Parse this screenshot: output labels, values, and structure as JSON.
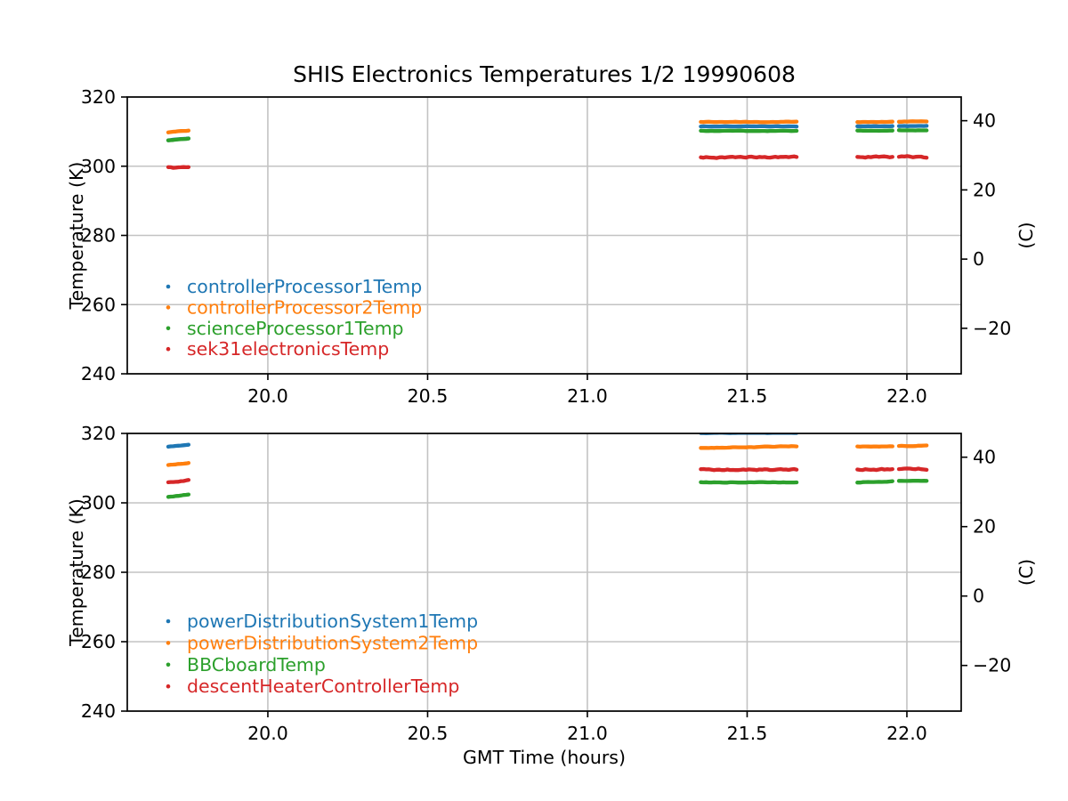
{
  "title": "SHIS Electronics Temperatures 1/2 19990608",
  "xlabel": "GMT Time (hours)",
  "ylabel_left": "Temperature (K)",
  "ylabel_right": "(C)",
  "colors": {
    "blue": "#1f77b4",
    "orange": "#ff7f0e",
    "green": "#2ca02c",
    "red": "#d62728",
    "grid": "#c3c3c3",
    "spine": "#000000"
  },
  "chart_data": [
    {
      "type": "scatter",
      "subplot": "top",
      "title": "SHIS Electronics Temperatures 1/2 19990608",
      "xlabel": "",
      "ylabel_left": "Temperature (K)",
      "ylabel_right": "(C)",
      "xlim": [
        19.56,
        22.17
      ],
      "ylim_K": [
        240,
        320
      ],
      "x_ticks": [
        20.0,
        20.5,
        21.0,
        21.5,
        22.0
      ],
      "x_tick_labels": [
        "20.0",
        "20.5",
        "21.0",
        "21.5",
        "22.0"
      ],
      "y_ticks_K": [
        320,
        300,
        280,
        260,
        240
      ],
      "y_tick_labels_K": [
        "320",
        "300",
        "280",
        "260",
        "240"
      ],
      "y_ticks_C": [
        40,
        20,
        0,
        -20
      ],
      "y_tick_labels_C": [
        "40",
        "20",
        "0",
        "−20"
      ],
      "grid": true,
      "legend_position": "lower left",
      "legend_entries": [
        "controllerProcessor1Temp",
        "controllerProcessor2Temp",
        "scienceProcessor1Temp",
        "sek31electronicsTemp"
      ],
      "series": [
        {
          "name": "controllerProcessor1Temp",
          "color": "#1f77b4",
          "segments": [
            {
              "t": [
                19.688,
                19.752
              ],
              "tempK": [
                307.55,
                308.05
              ],
              "wiggle": 0.05
            },
            {
              "t": [
                21.355,
                21.655
              ],
              "tempK": [
                311.5,
                311.5
              ],
              "wiggle": 0.06
            },
            {
              "t": [
                21.845,
                21.955
              ],
              "tempK": [
                311.5,
                311.55
              ],
              "wiggle": 0.06
            },
            {
              "t": [
                21.975,
                22.062
              ],
              "tempK": [
                311.6,
                311.6
              ],
              "wiggle": 0.06
            }
          ]
        },
        {
          "name": "controllerProcessor2Temp",
          "color": "#ff7f0e",
          "segments": [
            {
              "t": [
                19.688,
                19.752
              ],
              "tempK": [
                309.8,
                310.3
              ],
              "wiggle": 0.07
            },
            {
              "t": [
                21.355,
                21.655
              ],
              "tempK": [
                312.8,
                312.8
              ],
              "wiggle": 0.07
            },
            {
              "t": [
                21.845,
                21.955
              ],
              "tempK": [
                312.8,
                312.85
              ],
              "wiggle": 0.07
            },
            {
              "t": [
                21.975,
                22.062
              ],
              "tempK": [
                312.9,
                312.95
              ],
              "wiggle": 0.07
            }
          ]
        },
        {
          "name": "scienceProcessor1Temp",
          "color": "#2ca02c",
          "segments": [
            {
              "t": [
                19.688,
                19.752
              ],
              "tempK": [
                307.5,
                308.0
              ],
              "wiggle": 0.07
            },
            {
              "t": [
                21.355,
                21.655
              ],
              "tempK": [
                310.2,
                310.2
              ],
              "wiggle": 0.07
            },
            {
              "t": [
                21.845,
                21.955
              ],
              "tempK": [
                310.25,
                310.3
              ],
              "wiggle": 0.07
            },
            {
              "t": [
                21.975,
                22.062
              ],
              "tempK": [
                310.4,
                310.4
              ],
              "wiggle": 0.07
            }
          ]
        },
        {
          "name": "sek31electronicsTemp",
          "color": "#d62728",
          "segments": [
            {
              "t": [
                19.688,
                19.752
              ],
              "tempK": [
                299.7,
                299.5
              ],
              "wiggle": 0.18
            },
            {
              "t": [
                21.355,
                21.655
              ],
              "tempK": [
                302.5,
                302.7
              ],
              "wiggle": 0.22
            },
            {
              "t": [
                21.845,
                21.955
              ],
              "tempK": [
                302.8,
                302.7
              ],
              "wiggle": 0.25
            },
            {
              "t": [
                21.975,
                22.062
              ],
              "tempK": [
                302.7,
                302.7
              ],
              "wiggle": 0.25
            }
          ]
        }
      ]
    },
    {
      "type": "scatter",
      "subplot": "bottom",
      "title": "",
      "xlabel": "GMT Time (hours)",
      "ylabel_left": "Temperature (K)",
      "ylabel_right": "(C)",
      "xlim": [
        19.56,
        22.17
      ],
      "ylim_K": [
        240,
        320
      ],
      "x_ticks": [
        20.0,
        20.5,
        21.0,
        21.5,
        22.0
      ],
      "x_tick_labels": [
        "20.0",
        "20.5",
        "21.0",
        "21.5",
        "22.0"
      ],
      "y_ticks_K": [
        320,
        300,
        280,
        260,
        240
      ],
      "y_tick_labels_K": [
        "320",
        "300",
        "280",
        "260",
        "240"
      ],
      "y_ticks_C": [
        40,
        20,
        0,
        -20
      ],
      "y_tick_labels_C": [
        "40",
        "20",
        "0",
        "−20"
      ],
      "grid": true,
      "legend_position": "lower left",
      "legend_entries": [
        "powerDistributionSystem1Temp",
        "powerDistributionSystem2Temp",
        "BBCboardTemp",
        "descentHeaterControllerTemp"
      ],
      "series": [
        {
          "name": "powerDistributionSystem1Temp",
          "color": "#1f77b4",
          "segments": [
            {
              "t": [
                19.688,
                19.752
              ],
              "tempK": [
                316.2,
                316.8
              ],
              "wiggle": 0.07
            },
            {
              "t": [
                21.355,
                21.655
              ],
              "tempK": [
                320.15,
                320.15
              ],
              "wiggle": 0.06
            },
            {
              "t": [
                21.845,
                21.955
              ],
              "tempK": [
                320.6,
                320.6
              ],
              "wiggle": 0.05
            },
            {
              "t": [
                21.975,
                22.062
              ],
              "tempK": [
                320.6,
                320.6
              ],
              "wiggle": 0.05
            }
          ]
        },
        {
          "name": "powerDistributionSystem2Temp",
          "color": "#ff7f0e",
          "segments": [
            {
              "t": [
                19.688,
                19.752
              ],
              "tempK": [
                310.9,
                311.5
              ],
              "wiggle": 0.07
            },
            {
              "t": [
                21.355,
                21.655
              ],
              "tempK": [
                315.8,
                316.3
              ],
              "wiggle": 0.08
            },
            {
              "t": [
                21.845,
                21.955
              ],
              "tempK": [
                316.2,
                316.25
              ],
              "wiggle": 0.07
            },
            {
              "t": [
                21.975,
                22.062
              ],
              "tempK": [
                316.4,
                316.45
              ],
              "wiggle": 0.07
            }
          ]
        },
        {
          "name": "BBCboardTemp",
          "color": "#2ca02c",
          "segments": [
            {
              "t": [
                19.688,
                19.752
              ],
              "tempK": [
                301.7,
                302.4
              ],
              "wiggle": 0.07
            },
            {
              "t": [
                21.355,
                21.655
              ],
              "tempK": [
                305.9,
                305.95
              ],
              "wiggle": 0.07
            },
            {
              "t": [
                21.845,
                21.955
              ],
              "tempK": [
                305.9,
                306.2
              ],
              "wiggle": 0.08
            },
            {
              "t": [
                21.975,
                22.062
              ],
              "tempK": [
                306.3,
                306.3
              ],
              "wiggle": 0.07
            }
          ]
        },
        {
          "name": "descentHeaterControllerTemp",
          "color": "#d62728",
          "segments": [
            {
              "t": [
                19.688,
                19.752
              ],
              "tempK": [
                305.9,
                306.5
              ],
              "wiggle": 0.1
            },
            {
              "t": [
                21.355,
                21.655
              ],
              "tempK": [
                309.55,
                309.6
              ],
              "wiggle": 0.18
            },
            {
              "t": [
                21.845,
                21.955
              ],
              "tempK": [
                309.6,
                309.65
              ],
              "wiggle": 0.2
            },
            {
              "t": [
                21.975,
                22.062
              ],
              "tempK": [
                309.8,
                309.75
              ],
              "wiggle": 0.2
            }
          ]
        }
      ]
    }
  ]
}
